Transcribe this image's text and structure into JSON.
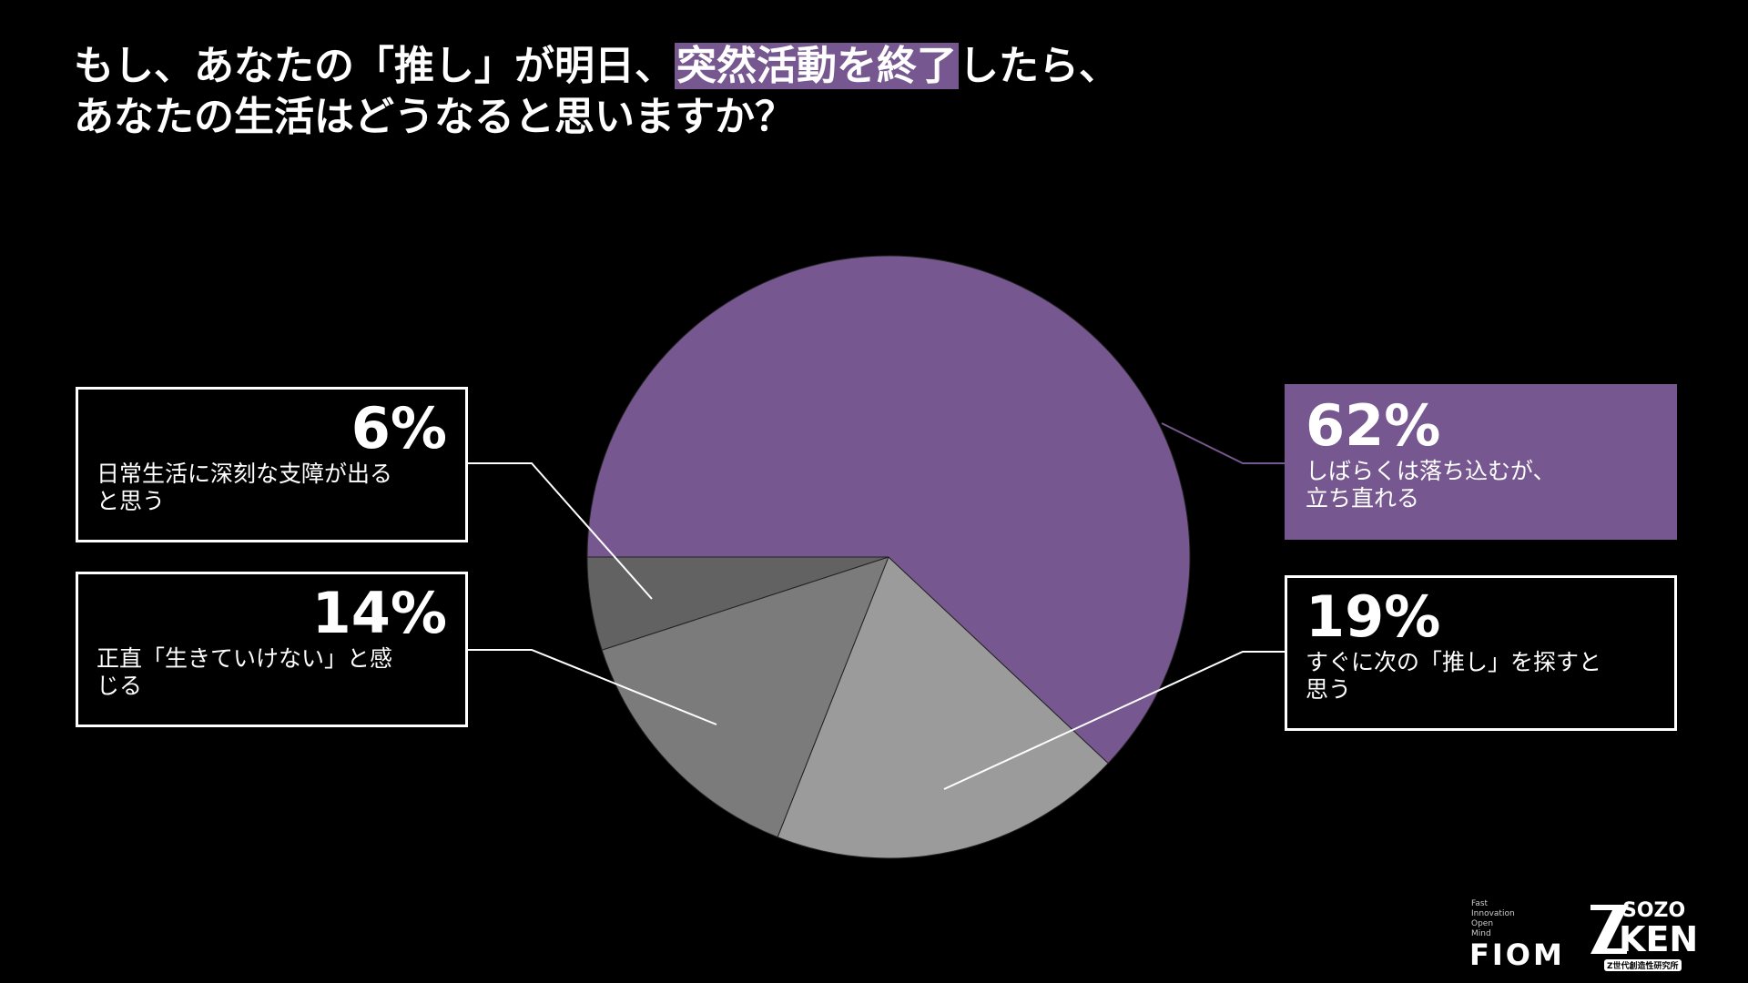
{
  "chart_data": {
    "type": "pie",
    "title_lines": [
      [
        {
          "text": "もし、あなたの「推し」が明日、"
        },
        {
          "text": "突然活動を終了",
          "highlight": true
        },
        {
          "text": "したら、"
        }
      ],
      [
        {
          "text": "あなたの生活はどうなると思いますか？"
        }
      ]
    ],
    "highlight_color": "#76578f",
    "categories": [
      [
        "しばらくは落ち込むが、",
        "立ち直れる"
      ],
      [
        "すぐに次の「推し」を探すと",
        "思う"
      ],
      [
        "正直「生きていけない」と感",
        "じる"
      ],
      [
        "日常生活に深刻な支障が出る",
        "と思う"
      ]
    ],
    "values": [
      62,
      19,
      14,
      6
    ],
    "value_labels": [
      "62%",
      "19%",
      "14%",
      "6%"
    ],
    "colors": [
      "#76578f",
      "#9b9b9b",
      "#7b7b7b",
      "#626262"
    ]
  },
  "footer": {
    "fiom_words": [
      "Fast",
      "Innovation",
      "Open",
      "Mind"
    ],
    "fiom": "FIOM",
    "sozo": "SOZO",
    "ken": "KEN",
    "institute": "Z世代創造性研究所"
  }
}
